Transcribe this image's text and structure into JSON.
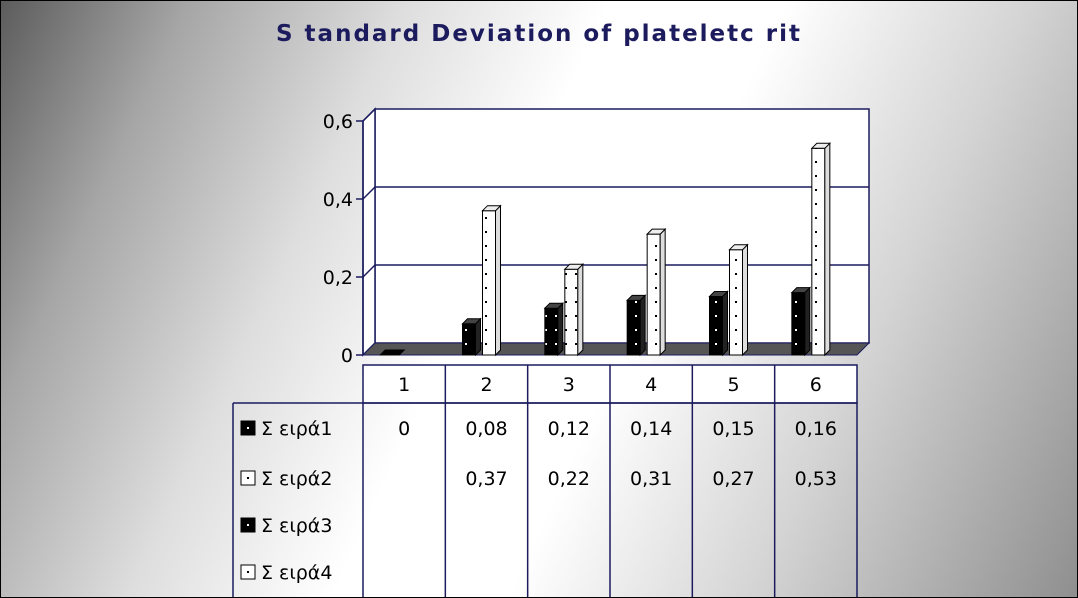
{
  "chart_data": {
    "type": "bar",
    "title": "S tandard Deviation of plateletc rit",
    "xlabel": "",
    "ylabel": "",
    "ylim": [
      0,
      0.6
    ],
    "yticks": [
      "0",
      "0,2",
      "0,4",
      "0,6"
    ],
    "categories": [
      "1",
      "2",
      "3",
      "4",
      "5",
      "6"
    ],
    "grid": true,
    "legend": "data-table-left",
    "series": [
      {
        "name": "Σ ειρά1",
        "values": [
          0,
          0.08,
          0.12,
          0.14,
          0.15,
          0.16
        ],
        "labels": [
          "0",
          "0,08",
          "0,12",
          "0,14",
          "0,15",
          "0,16"
        ],
        "color": "#000000"
      },
      {
        "name": "Σ ειρά2",
        "values": [
          null,
          0.37,
          0.22,
          0.31,
          0.27,
          0.53
        ],
        "labels": [
          "",
          "0,37",
          "0,22",
          "0,31",
          "0,27",
          "0,53"
        ],
        "color": "#ffffff"
      },
      {
        "name": "Σ ειρά3",
        "values": [
          null,
          null,
          null,
          null,
          null,
          null
        ],
        "labels": [
          "",
          "",
          "",
          "",
          "",
          ""
        ],
        "color": "#000000"
      },
      {
        "name": "Σ ειρά4",
        "values": [
          null,
          null,
          null,
          null,
          null,
          null
        ],
        "labels": [
          "",
          "",
          "",
          "",
          "",
          ""
        ],
        "color": "#ffffff"
      }
    ],
    "colors": {
      "title": "#1b1b5e",
      "axis": "#1b1b5e",
      "grid": "#1b1b5e",
      "floor": "#555555"
    }
  }
}
